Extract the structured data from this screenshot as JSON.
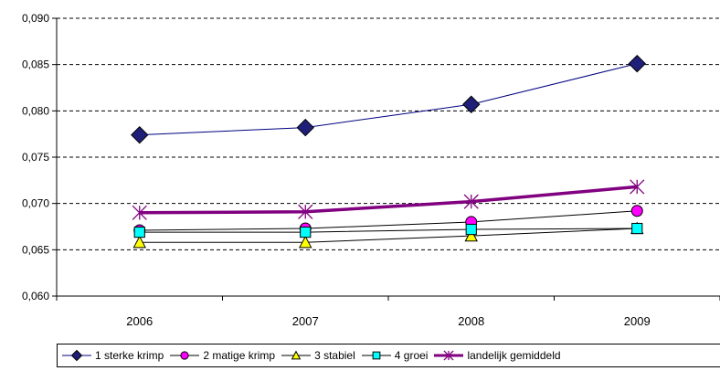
{
  "chart_data": {
    "type": "line",
    "title": "",
    "xlabel": "",
    "ylabel": "",
    "categories": [
      "2006",
      "2007",
      "2008",
      "2009"
    ],
    "ylim": [
      0.06,
      0.09
    ],
    "yticks": [
      "0,060",
      "0,065",
      "0,070",
      "0,075",
      "0,080",
      "0,085",
      "0,090"
    ],
    "grid": "horizontal dashed",
    "legend_position": "bottom",
    "series": [
      {
        "name": "1  sterke krimp",
        "values": [
          0.0774,
          0.0782,
          0.0807,
          0.0851
        ],
        "color": "#000080",
        "marker": "diamond",
        "marker_fill": "#1f1f7a"
      },
      {
        "name": "2  matige krimp",
        "values": [
          0.0671,
          0.0673,
          0.068,
          0.0692
        ],
        "color": "#000000",
        "marker": "circle",
        "marker_fill": "#ff00ff"
      },
      {
        "name": "3  stabiel",
        "values": [
          0.0658,
          0.0658,
          0.0665,
          0.0673
        ],
        "color": "#000000",
        "marker": "triangle",
        "marker_fill": "#ffff00"
      },
      {
        "name": "4  groei",
        "values": [
          0.0669,
          0.0669,
          0.0672,
          0.0673
        ],
        "color": "#000000",
        "marker": "square",
        "marker_fill": "#00ffff"
      },
      {
        "name": "landelijk gemiddeld",
        "values": [
          0.069,
          0.0691,
          0.0702,
          0.0718
        ],
        "color": "#800080",
        "marker": "star",
        "marker_fill": "none"
      }
    ]
  }
}
